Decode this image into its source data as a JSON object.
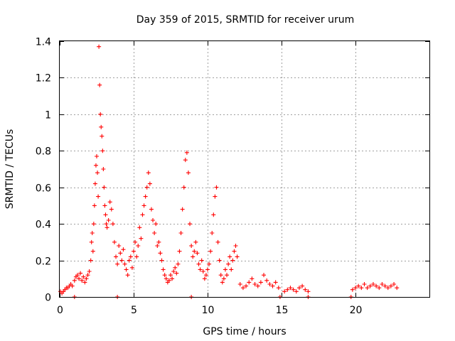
{
  "chart_data": {
    "type": "scatter",
    "title": "Day 359 of 2015, SRMTID for receiver urum",
    "xlabel": "GPS time / hours",
    "ylabel": "SRMTID / TECUs",
    "xlim": [
      0,
      25
    ],
    "ylim": [
      0,
      1.4
    ],
    "xticks": [
      0,
      5,
      10,
      15,
      20
    ],
    "yticks": [
      0,
      0.2,
      0.4,
      0.6,
      0.8,
      1,
      1.2,
      1.4
    ],
    "xtick_labels": [
      "0",
      "5",
      "10",
      "15",
      "20"
    ],
    "ytick_labels": [
      "0",
      "0.2",
      "0.4",
      "0.6",
      "0.8",
      "1",
      "1.2",
      "1.4"
    ],
    "grid": true,
    "marker": "+",
    "marker_color": "#ff0000",
    "series": [
      {
        "name": "SRMTID",
        "points": [
          [
            0.05,
            0.03
          ],
          [
            0.15,
            0.02
          ],
          [
            0.25,
            0.03
          ],
          [
            0.35,
            0.04
          ],
          [
            0.45,
            0.05
          ],
          [
            0.55,
            0.05
          ],
          [
            0.65,
            0.06
          ],
          [
            0.75,
            0.07
          ],
          [
            0.85,
            0.06
          ],
          [
            1.0,
            0.09
          ],
          [
            1.1,
            0.11
          ],
          [
            1.2,
            0.12
          ],
          [
            1.3,
            0.1
          ],
          [
            1.4,
            0.13
          ],
          [
            1.5,
            0.09
          ],
          [
            1.6,
            0.11
          ],
          [
            1.7,
            0.08
          ],
          [
            1.8,
            0.1
          ],
          [
            1.9,
            0.12
          ],
          [
            2.0,
            0.14
          ],
          [
            2.1,
            0.2
          ],
          [
            2.15,
            0.3
          ],
          [
            2.2,
            0.35
          ],
          [
            2.25,
            0.25
          ],
          [
            2.3,
            0.4
          ],
          [
            2.35,
            0.5
          ],
          [
            2.4,
            0.62
          ],
          [
            2.45,
            0.72
          ],
          [
            2.5,
            0.77
          ],
          [
            2.55,
            0.68
          ],
          [
            2.6,
            0.55
          ],
          [
            2.65,
            1.37
          ],
          [
            2.7,
            1.16
          ],
          [
            2.75,
            1.0
          ],
          [
            2.8,
            0.93
          ],
          [
            2.85,
            0.88
          ],
          [
            2.9,
            0.8
          ],
          [
            2.95,
            0.7
          ],
          [
            3.0,
            0.6
          ],
          [
            3.05,
            0.5
          ],
          [
            3.1,
            0.45
          ],
          [
            3.15,
            0.4
          ],
          [
            3.2,
            0.38
          ],
          [
            3.3,
            0.42
          ],
          [
            3.4,
            0.52
          ],
          [
            3.5,
            0.48
          ],
          [
            3.6,
            0.4
          ],
          [
            3.7,
            0.3
          ],
          [
            3.8,
            0.22
          ],
          [
            3.9,
            0.18
          ],
          [
            4.0,
            0.28
          ],
          [
            4.1,
            0.24
          ],
          [
            4.2,
            0.2
          ],
          [
            4.3,
            0.26
          ],
          [
            4.4,
            0.18
          ],
          [
            4.5,
            0.15
          ],
          [
            4.6,
            0.12
          ],
          [
            4.7,
            0.2
          ],
          [
            4.8,
            0.22
          ],
          [
            4.9,
            0.16
          ],
          [
            5.0,
            0.25
          ],
          [
            5.1,
            0.3
          ],
          [
            5.2,
            0.22
          ],
          [
            5.3,
            0.28
          ],
          [
            5.4,
            0.38
          ],
          [
            5.5,
            0.32
          ],
          [
            5.6,
            0.45
          ],
          [
            5.7,
            0.5
          ],
          [
            5.8,
            0.55
          ],
          [
            5.9,
            0.6
          ],
          [
            6.0,
            0.68
          ],
          [
            6.1,
            0.62
          ],
          [
            6.2,
            0.48
          ],
          [
            6.3,
            0.42
          ],
          [
            6.4,
            0.35
          ],
          [
            6.5,
            0.4
          ],
          [
            6.6,
            0.28
          ],
          [
            6.7,
            0.3
          ],
          [
            6.8,
            0.24
          ],
          [
            6.9,
            0.2
          ],
          [
            7.0,
            0.15
          ],
          [
            7.1,
            0.12
          ],
          [
            7.2,
            0.1
          ],
          [
            7.3,
            0.08
          ],
          [
            7.4,
            0.09
          ],
          [
            7.5,
            0.12
          ],
          [
            7.6,
            0.1
          ],
          [
            7.7,
            0.14
          ],
          [
            7.8,
            0.16
          ],
          [
            7.9,
            0.13
          ],
          [
            8.0,
            0.18
          ],
          [
            8.1,
            0.25
          ],
          [
            8.2,
            0.35
          ],
          [
            8.3,
            0.48
          ],
          [
            8.4,
            0.6
          ],
          [
            8.5,
            0.75
          ],
          [
            8.6,
            0.79
          ],
          [
            8.7,
            0.68
          ],
          [
            8.8,
            0.4
          ],
          [
            8.9,
            0.28
          ],
          [
            9.0,
            0.22
          ],
          [
            9.1,
            0.25
          ],
          [
            9.2,
            0.3
          ],
          [
            9.3,
            0.24
          ],
          [
            9.4,
            0.18
          ],
          [
            9.5,
            0.15
          ],
          [
            9.6,
            0.2
          ],
          [
            9.7,
            0.14
          ],
          [
            9.8,
            0.1
          ],
          [
            9.9,
            0.12
          ],
          [
            10.0,
            0.15
          ],
          [
            10.1,
            0.18
          ],
          [
            10.2,
            0.25
          ],
          [
            10.3,
            0.35
          ],
          [
            10.4,
            0.45
          ],
          [
            10.5,
            0.55
          ],
          [
            10.6,
            0.6
          ],
          [
            10.7,
            0.3
          ],
          [
            10.8,
            0.2
          ],
          [
            10.9,
            0.12
          ],
          [
            11.0,
            0.08
          ],
          [
            11.1,
            0.1
          ],
          [
            11.2,
            0.15
          ],
          [
            11.3,
            0.12
          ],
          [
            11.4,
            0.18
          ],
          [
            11.5,
            0.22
          ],
          [
            11.6,
            0.15
          ],
          [
            11.7,
            0.2
          ],
          [
            11.8,
            0.25
          ],
          [
            11.9,
            0.28
          ],
          [
            12.0,
            0.22
          ],
          [
            12.2,
            0.07
          ],
          [
            12.4,
            0.05
          ],
          [
            12.6,
            0.06
          ],
          [
            12.8,
            0.08
          ],
          [
            13.0,
            0.1
          ],
          [
            13.2,
            0.07
          ],
          [
            13.4,
            0.06
          ],
          [
            13.6,
            0.08
          ],
          [
            13.8,
            0.12
          ],
          [
            14.0,
            0.09
          ],
          [
            14.2,
            0.07
          ],
          [
            14.4,
            0.06
          ],
          [
            14.6,
            0.08
          ],
          [
            14.8,
            0.05
          ],
          [
            15.2,
            0.03
          ],
          [
            15.4,
            0.04
          ],
          [
            15.6,
            0.05
          ],
          [
            15.8,
            0.04
          ],
          [
            16.0,
            0.03
          ],
          [
            16.2,
            0.05
          ],
          [
            16.4,
            0.06
          ],
          [
            16.6,
            0.04
          ],
          [
            16.8,
            0.03
          ],
          [
            19.8,
            0.04
          ],
          [
            20.0,
            0.05
          ],
          [
            20.2,
            0.06
          ],
          [
            20.4,
            0.05
          ],
          [
            20.6,
            0.07
          ],
          [
            20.8,
            0.05
          ],
          [
            21.0,
            0.06
          ],
          [
            21.2,
            0.07
          ],
          [
            21.4,
            0.06
          ],
          [
            21.6,
            0.05
          ],
          [
            21.8,
            0.07
          ],
          [
            22.0,
            0.06
          ],
          [
            22.2,
            0.05
          ],
          [
            22.4,
            0.06
          ],
          [
            22.6,
            0.07
          ],
          [
            22.8,
            0.05
          ],
          [
            1.0,
            0.0
          ],
          [
            3.9,
            0.0
          ],
          [
            8.9,
            0.0
          ],
          [
            14.9,
            0.0
          ],
          [
            16.8,
            0.0
          ],
          [
            19.7,
            0.0
          ]
        ]
      }
    ]
  }
}
